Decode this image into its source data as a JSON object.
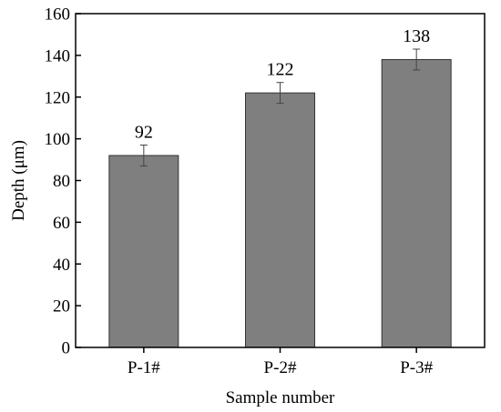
{
  "chart_data": {
    "type": "bar",
    "categories": [
      "P-1#",
      "P-2#",
      "P-3#"
    ],
    "values": [
      92,
      122,
      138
    ],
    "errors": [
      5,
      5,
      5
    ],
    "data_labels": [
      "92",
      "122",
      "138"
    ],
    "title": "",
    "xlabel": "Sample number",
    "ylabel": "Depth (μm)",
    "ylim": [
      0,
      160
    ],
    "yticks": [
      "0",
      "20",
      "40",
      "60",
      "80",
      "100",
      "120",
      "140",
      "160"
    ],
    "grid": false,
    "legend": "none",
    "bar_color": "#7f7f7f",
    "bar_edge_color": "#333333"
  }
}
